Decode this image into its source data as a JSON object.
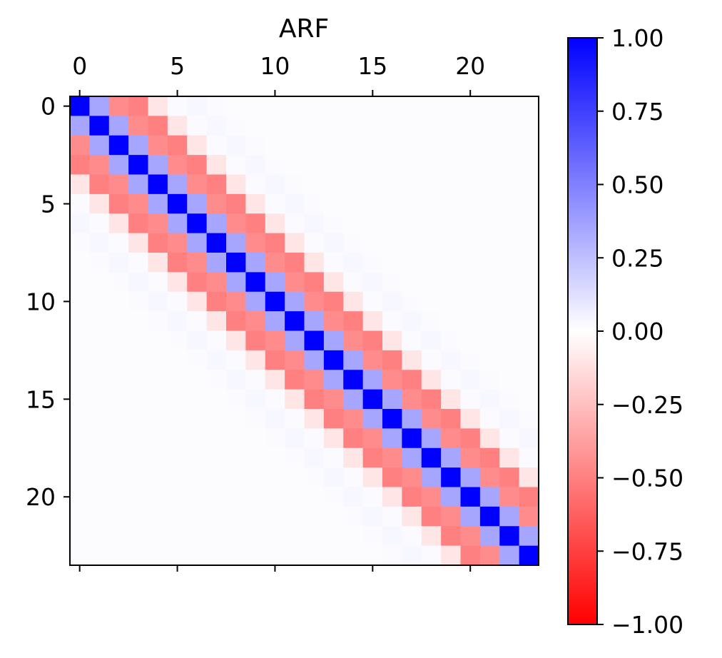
{
  "chart_data": {
    "type": "heatmap",
    "title": "ARF",
    "xlabel": "",
    "ylabel": "",
    "n": 24,
    "x_ticks": [
      0,
      5,
      10,
      15,
      20
    ],
    "y_ticks": [
      0,
      5,
      10,
      15,
      20
    ],
    "x_tick_labels": [
      "0",
      "5",
      "10",
      "15",
      "20"
    ],
    "y_tick_labels": [
      "0",
      "5",
      "10",
      "15",
      "20"
    ],
    "x_axis_position": "top",
    "diagonal_profile": {
      "lag": [
        0,
        1,
        2,
        3,
        4,
        5,
        6,
        7,
        8,
        9,
        10,
        11,
        12
      ],
      "value": [
        1.0,
        0.35,
        -0.45,
        -0.5,
        -0.1,
        0.02,
        0.03,
        0.02,
        0.01,
        0.01,
        0.01,
        0.01,
        0.01
      ]
    },
    "colorbar": {
      "range": [
        -1.0,
        1.0
      ],
      "ticks": [
        1.0,
        0.75,
        0.5,
        0.25,
        0.0,
        -0.25,
        -0.5,
        -0.75,
        -1.0
      ],
      "tick_labels": [
        "1.00",
        "0.75",
        "0.50",
        "0.25",
        "0.00",
        "−0.25",
        "−0.50",
        "−0.75",
        "−1.00"
      ],
      "colormap": "bwr_r",
      "position": "right"
    },
    "grid": false
  }
}
